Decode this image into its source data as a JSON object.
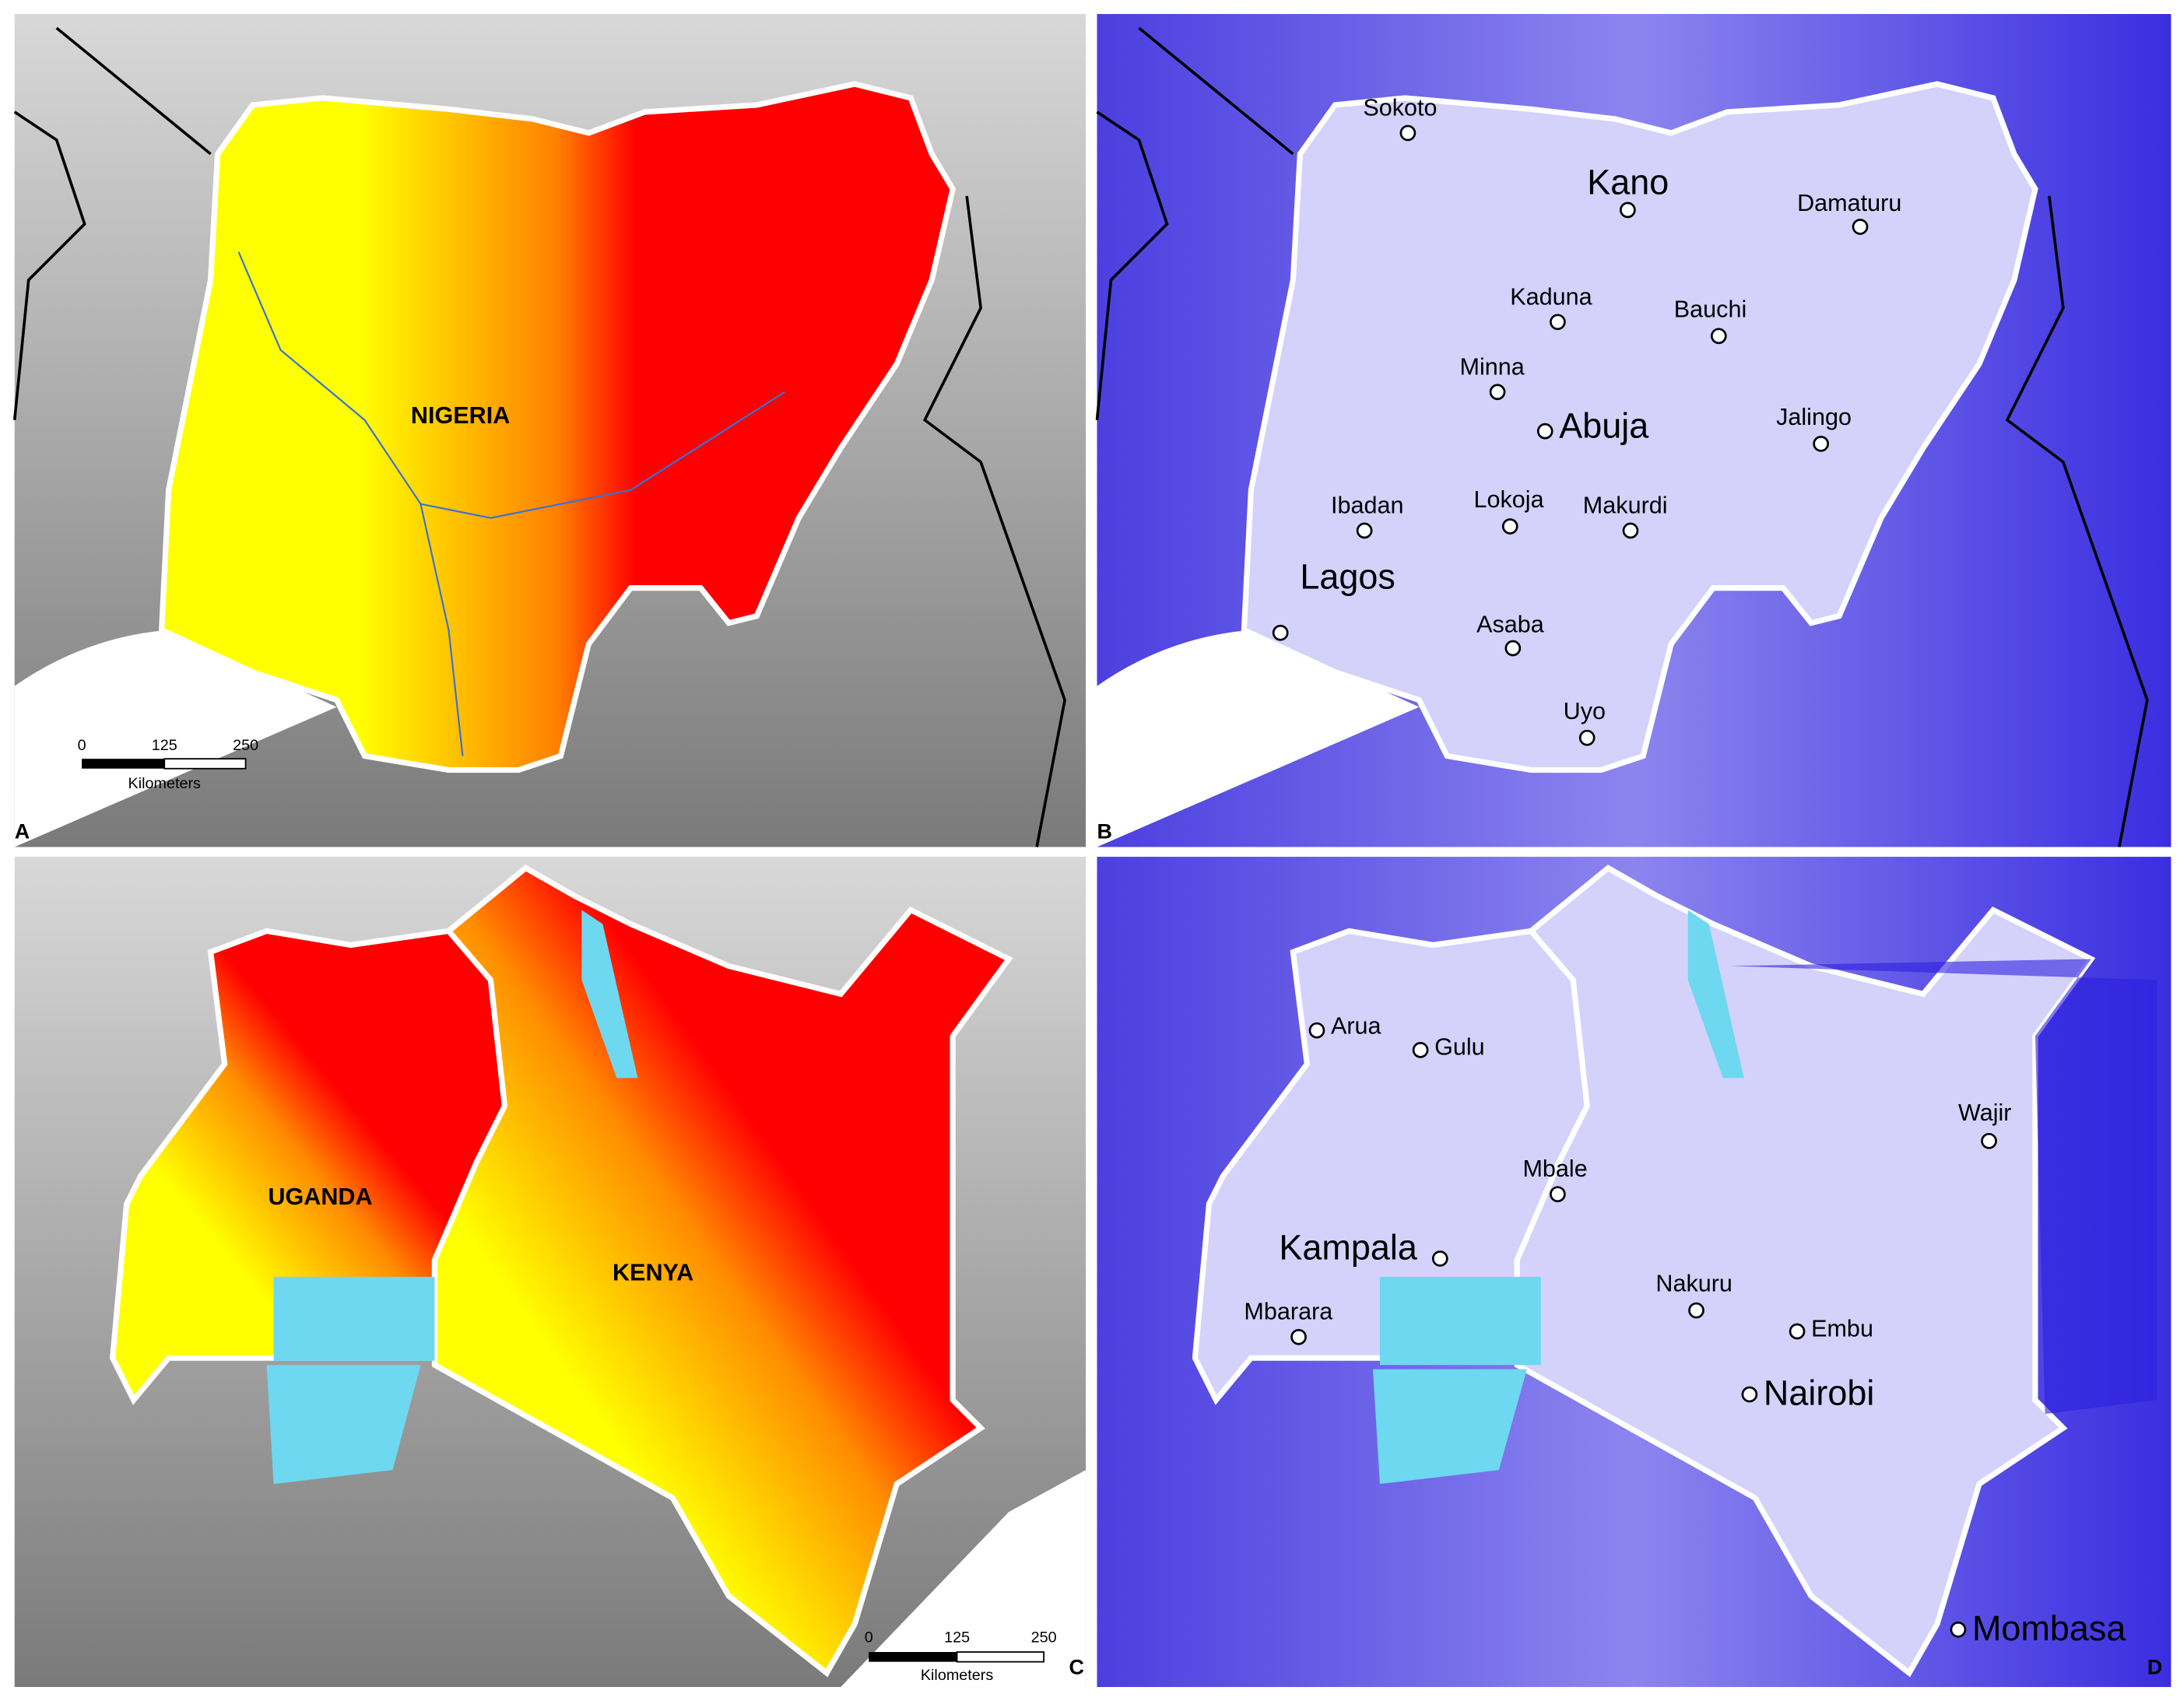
{
  "panels": [
    {
      "letter": "A",
      "country_labels": [
        "NIGERIA"
      ],
      "scale_bar": {
        "ticks": [
          0,
          125,
          250
        ],
        "unit": "Kilometers"
      }
    },
    {
      "letter": "B",
      "cities": [
        "Sokoto",
        "Kano",
        "Damaturu",
        "Kaduna",
        "Bauchi",
        "Minna",
        "Abuja",
        "Jalingo",
        "Ibadan",
        "Lokoja",
        "Makurdi",
        "Lagos",
        "Asaba",
        "Uyo"
      ]
    },
    {
      "letter": "C",
      "country_labels": [
        "UGANDA",
        "KENYA"
      ],
      "scale_bar": {
        "ticks": [
          0,
          125,
          250
        ],
        "unit": "Kilometers"
      }
    },
    {
      "letter": "D",
      "cities": [
        "Arua",
        "Gulu",
        "Wajir",
        "Mbale",
        "Kampala",
        "Nakuru",
        "Mbarara",
        "Embu",
        "Nairobi",
        "Mombasa"
      ]
    }
  ]
}
